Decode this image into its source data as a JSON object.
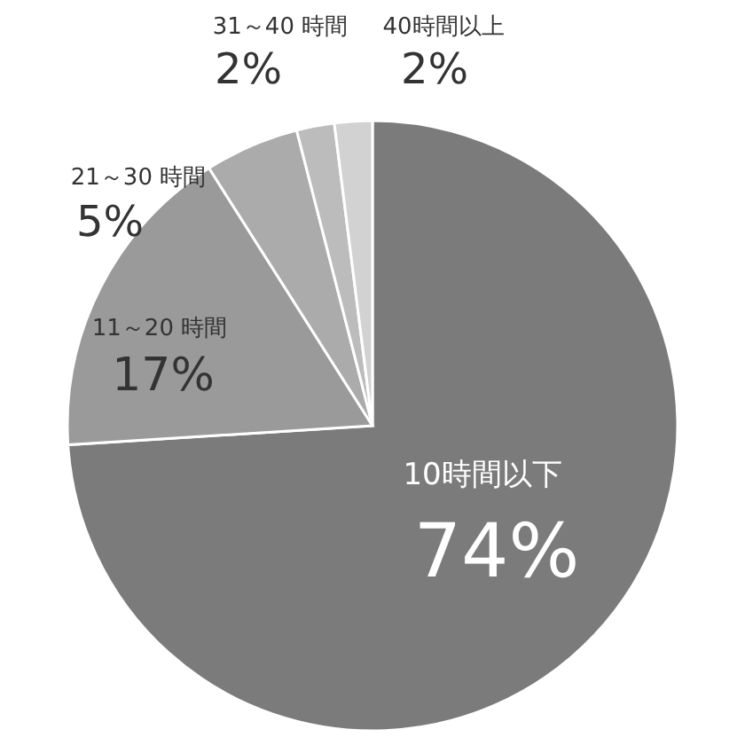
{
  "chart_data": {
    "type": "pie",
    "categories": [
      "10時間以下",
      "11～20 時間",
      "21～30 時間",
      "31～40 時間",
      "40時間以上"
    ],
    "values": [
      74,
      17,
      5,
      2,
      2
    ],
    "value_labels": [
      "74%",
      "17%",
      "5%",
      "2%",
      "2%"
    ],
    "colors": [
      "#7b7b7b",
      "#9a9a9a",
      "#ababab",
      "#bcbcbc",
      "#d2d2d2"
    ]
  }
}
